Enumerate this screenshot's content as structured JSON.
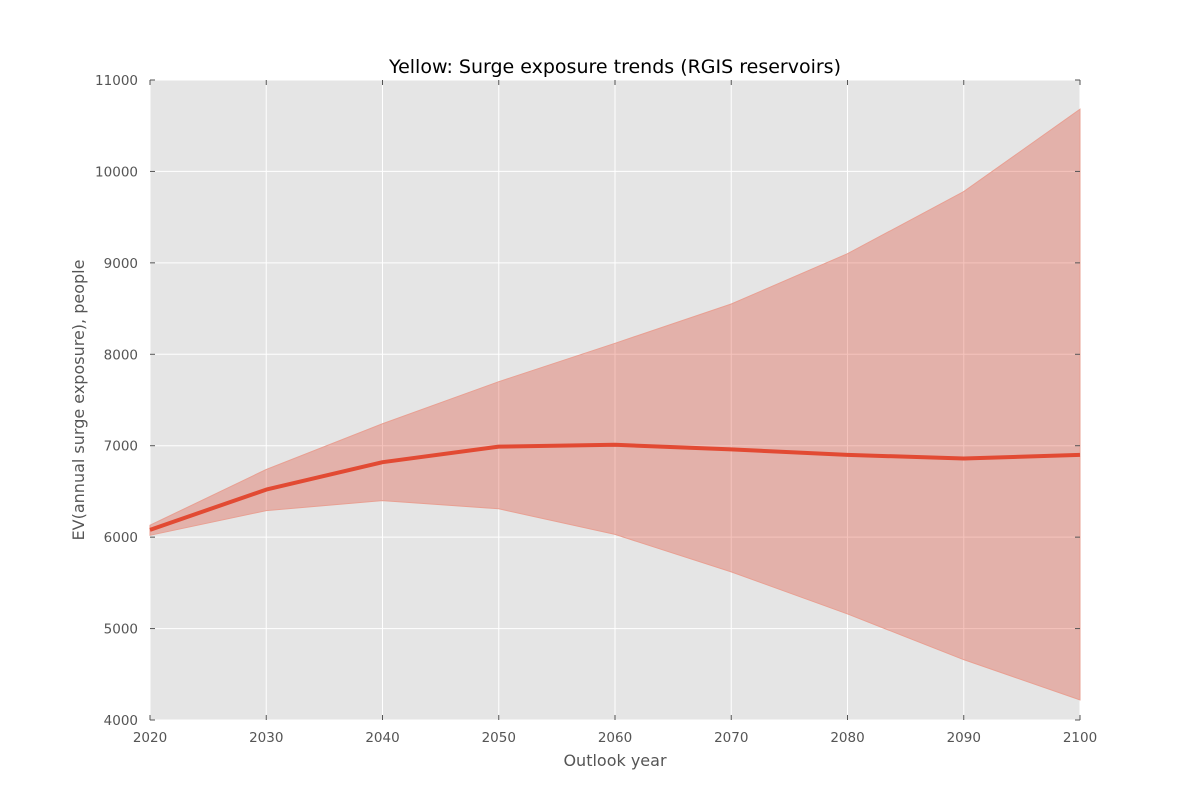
{
  "chart_data": {
    "type": "line",
    "title": "Yellow: Surge exposure trends (RGIS reservoirs)",
    "xlabel": "Outlook year",
    "ylabel": "EV(annual surge exposure), people",
    "xlim": [
      2020,
      2100
    ],
    "ylim": [
      4000,
      11000
    ],
    "x_ticks": [
      "2020",
      "2030",
      "2040",
      "2050",
      "2060",
      "2070",
      "2080",
      "2090",
      "2100"
    ],
    "y_ticks": [
      "4000",
      "5000",
      "6000",
      "7000",
      "8000",
      "9000",
      "10000",
      "11000"
    ],
    "grid": true,
    "x": [
      2020,
      2030,
      2040,
      2050,
      2060,
      2070,
      2080,
      2090,
      2100
    ],
    "series": [
      {
        "values": [
          6080,
          6520,
          6820,
          6990,
          7010,
          6960,
          6900,
          6860,
          6900
        ],
        "upper": [
          6130,
          6740,
          7240,
          7700,
          8120,
          8550,
          9100,
          9780,
          10680
        ],
        "lower": [
          6020,
          6290,
          6400,
          6310,
          6030,
          5620,
          5160,
          4660,
          4220
        ]
      }
    ],
    "colors": {
      "plot_background": "#e5e5e5",
      "grid": "#ffffff",
      "line": "#e24a33",
      "band": "#e24a33",
      "band_edge": "#e8a093"
    }
  }
}
